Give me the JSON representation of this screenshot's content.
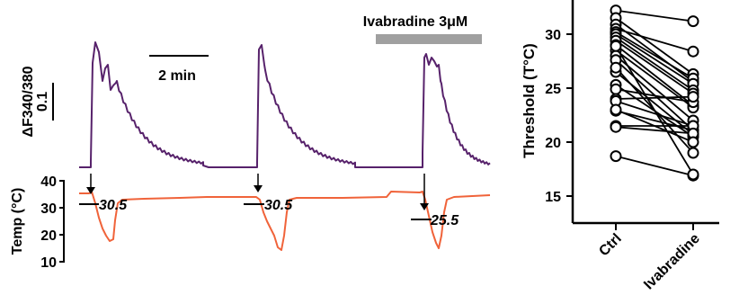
{
  "chart_data": [
    {
      "type": "line",
      "panel": "calcium-imaging-traces",
      "signal_scale": {
        "label": "ΔF340/380",
        "value": "0.1"
      },
      "time_scale": {
        "label": "2 min",
        "minutes": 2
      },
      "temp_axis": {
        "label": "Temp (°C)",
        "ticks": [
          "10",
          "20",
          "30",
          "40"
        ],
        "range": [
          10,
          40
        ]
      },
      "drug_bar": {
        "label": "Ivabradine 3μM"
      },
      "thresholds": [
        {
          "label": "30.5",
          "value": 30.5
        },
        {
          "label": "30.5",
          "value": 30.5
        },
        {
          "label": "25.5",
          "value": 25.5
        }
      ],
      "colors": {
        "calcium": "#57226b",
        "temperature": "#f0633a",
        "drug_bar": "#a0a0a0"
      }
    },
    {
      "type": "scatter",
      "panel": "paired-thresholds",
      "ylabel": "Threshold (T°C)",
      "categories": [
        "Ctrl",
        "Ivabradine"
      ],
      "y_ticks": [
        "15",
        "20",
        "25",
        "30"
      ],
      "ylim": [
        13,
        34
      ],
      "pairs": [
        [
          32.2,
          31.2
        ],
        [
          31.5,
          26.3
        ],
        [
          30.9,
          25.6
        ],
        [
          30.5,
          28.4
        ],
        [
          30.2,
          25.9
        ],
        [
          30.0,
          25.4
        ],
        [
          29.7,
          24.8
        ],
        [
          29.4,
          24.5
        ],
        [
          29.0,
          23.4
        ],
        [
          28.5,
          23.2
        ],
        [
          28.0,
          22.0
        ],
        [
          27.6,
          21.1
        ],
        [
          26.5,
          20.7
        ],
        [
          25.3,
          20.5
        ],
        [
          24.9,
          23.7
        ],
        [
          24.0,
          24.2
        ],
        [
          23.8,
          21.5
        ],
        [
          22.9,
          21.1
        ],
        [
          21.5,
          21.5
        ],
        [
          21.4,
          20.8
        ],
        [
          18.7,
          16.9
        ],
        [
          23.0,
          20.0
        ],
        [
          28.9,
          17.0
        ],
        [
          26.9,
          19.0
        ]
      ],
      "colors": {
        "marker_fill": "#ffffff",
        "marker_edge": "#000000",
        "line": "#000000"
      }
    }
  ]
}
